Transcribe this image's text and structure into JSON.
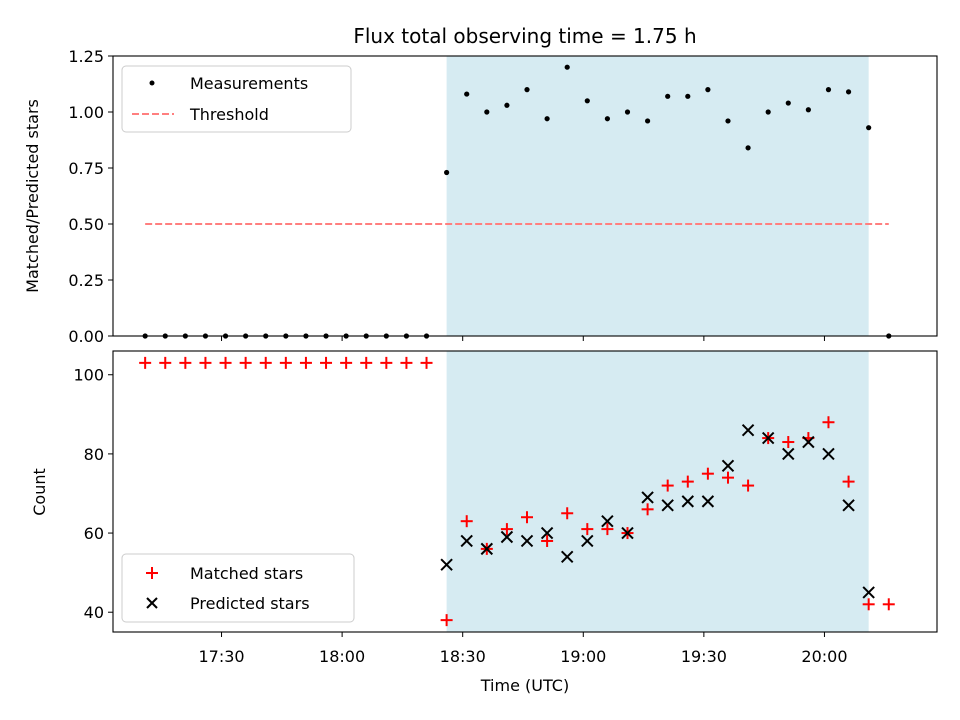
{
  "chart_data": [
    {
      "type": "scatter",
      "title": "Flux total observing time = 1.75 h",
      "xlabel": "",
      "ylabel": "Matched/Predicted stars",
      "ylim": [
        0,
        1.25
      ],
      "yticks": [
        "0.00",
        "0.25",
        "0.50",
        "0.75",
        "1.00",
        "1.25"
      ],
      "xlim": [
        "17:03",
        "20:28"
      ],
      "grid": false,
      "legend": "upper-left",
      "shaded_interval": [
        "18:26",
        "20:11"
      ],
      "series": [
        {
          "name": "Measurements",
          "marker": "dot",
          "color": "#000000",
          "x": [
            "17:11",
            "17:16",
            "17:21",
            "17:26",
            "17:31",
            "17:36",
            "17:41",
            "17:46",
            "17:51",
            "17:56",
            "18:01",
            "18:06",
            "18:11",
            "18:16",
            "18:21",
            "18:26",
            "18:31",
            "18:36",
            "18:41",
            "18:46",
            "18:51",
            "18:56",
            "19:01",
            "19:06",
            "19:11",
            "19:16",
            "19:21",
            "19:26",
            "19:31",
            "19:36",
            "19:41",
            "19:46",
            "19:51",
            "19:56",
            "20:01",
            "20:06",
            "20:11",
            "20:16"
          ],
          "y": [
            0,
            0,
            0,
            0,
            0,
            0,
            0,
            0,
            0,
            0,
            0,
            0,
            0,
            0,
            0,
            0.73,
            1.08,
            1.0,
            1.03,
            1.1,
            0.97,
            1.2,
            1.05,
            0.97,
            1.0,
            0.96,
            1.07,
            1.07,
            1.1,
            0.96,
            0.84,
            1.0,
            1.04,
            1.01,
            1.1,
            1.09,
            0.93,
            0
          ]
        },
        {
          "name": "Threshold",
          "style": "dashed",
          "color": "#ff7f7f",
          "x": [
            "17:11",
            "20:16"
          ],
          "y": [
            0.5,
            0.5
          ]
        }
      ]
    },
    {
      "type": "scatter",
      "title": "",
      "xlabel": "Time (UTC)",
      "ylabel": "Count",
      "ylim": [
        35,
        106
      ],
      "yticks": [
        "40",
        "60",
        "80",
        "100"
      ],
      "xlim": [
        "17:03",
        "20:28"
      ],
      "xticks": [
        "17:30",
        "18:00",
        "18:30",
        "19:00",
        "19:30",
        "20:00"
      ],
      "grid": false,
      "legend": "lower-left",
      "shaded_interval": [
        "18:26",
        "20:11"
      ],
      "series": [
        {
          "name": "Matched stars",
          "marker": "plus",
          "color": "#ff0000",
          "x": [
            "17:11",
            "17:16",
            "17:21",
            "17:26",
            "17:31",
            "17:36",
            "17:41",
            "17:46",
            "17:51",
            "17:56",
            "18:01",
            "18:06",
            "18:11",
            "18:16",
            "18:21",
            "18:26",
            "18:31",
            "18:36",
            "18:41",
            "18:46",
            "18:51",
            "18:56",
            "19:01",
            "19:06",
            "19:11",
            "19:16",
            "19:21",
            "19:26",
            "19:31",
            "19:36",
            "19:41",
            "19:46",
            "19:51",
            "19:56",
            "20:01",
            "20:06",
            "20:11",
            "20:16"
          ],
          "y": [
            103,
            103,
            103,
            103,
            103,
            103,
            103,
            103,
            103,
            103,
            103,
            103,
            103,
            103,
            103,
            38,
            63,
            56,
            61,
            64,
            58,
            65,
            61,
            61,
            60,
            66,
            72,
            73,
            75,
            74,
            72,
            84,
            83,
            84,
            88,
            73,
            42,
            42
          ]
        },
        {
          "name": "Predicted stars",
          "marker": "x",
          "color": "#000000",
          "x": [
            "18:26",
            "18:31",
            "18:36",
            "18:41",
            "18:46",
            "18:51",
            "18:56",
            "19:01",
            "19:06",
            "19:11",
            "19:16",
            "19:21",
            "19:26",
            "19:31",
            "19:36",
            "19:41",
            "19:46",
            "19:51",
            "19:56",
            "20:01",
            "20:06",
            "20:11"
          ],
          "y": [
            52,
            58,
            56,
            59,
            58,
            60,
            54,
            58,
            63,
            60,
            69,
            67,
            68,
            68,
            77,
            86,
            84,
            80,
            83,
            80,
            67,
            45
          ]
        }
      ]
    }
  ]
}
